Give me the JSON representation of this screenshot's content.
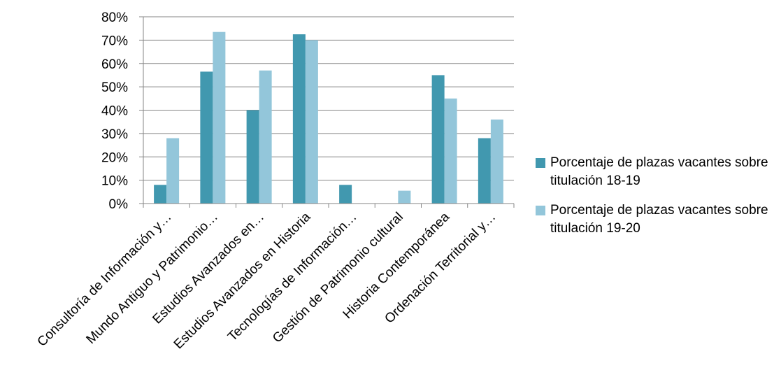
{
  "chart_data": {
    "type": "bar",
    "categories": [
      "Consultoría de Información y…",
      "Mundo Antiguo y Patrimonio…",
      "Estudios Avanzados en…",
      "Estudios Avanzados en Historia",
      "Tecnologías de Información…",
      "Gestión de Patrimonio cultural",
      "Historia Contemporánea",
      "Ordenación Territorial y…"
    ],
    "series": [
      {
        "name": "Porcentaje de plazas vacantes sobre  titulación 18-19",
        "values": [
          8,
          56.5,
          40,
          72.5,
          8,
          0,
          55,
          28
        ],
        "color": "#4198AF"
      },
      {
        "name": "Porcentaje de plazas vacantes sobre titulación 19-20",
        "values": [
          28,
          73.5,
          57,
          70,
          0,
          5.5,
          45,
          36
        ],
        "color": "#93C6DA"
      }
    ],
    "ylim": [
      0,
      80
    ],
    "yticks": [
      "0%",
      "10%",
      "20%",
      "30%",
      "40%",
      "50%",
      "60%",
      "70%",
      "80%"
    ],
    "ytick_values": [
      0,
      10,
      20,
      30,
      40,
      50,
      60,
      70,
      80
    ],
    "grid": true,
    "legend_position": "right",
    "gridline_color": "#868686"
  }
}
